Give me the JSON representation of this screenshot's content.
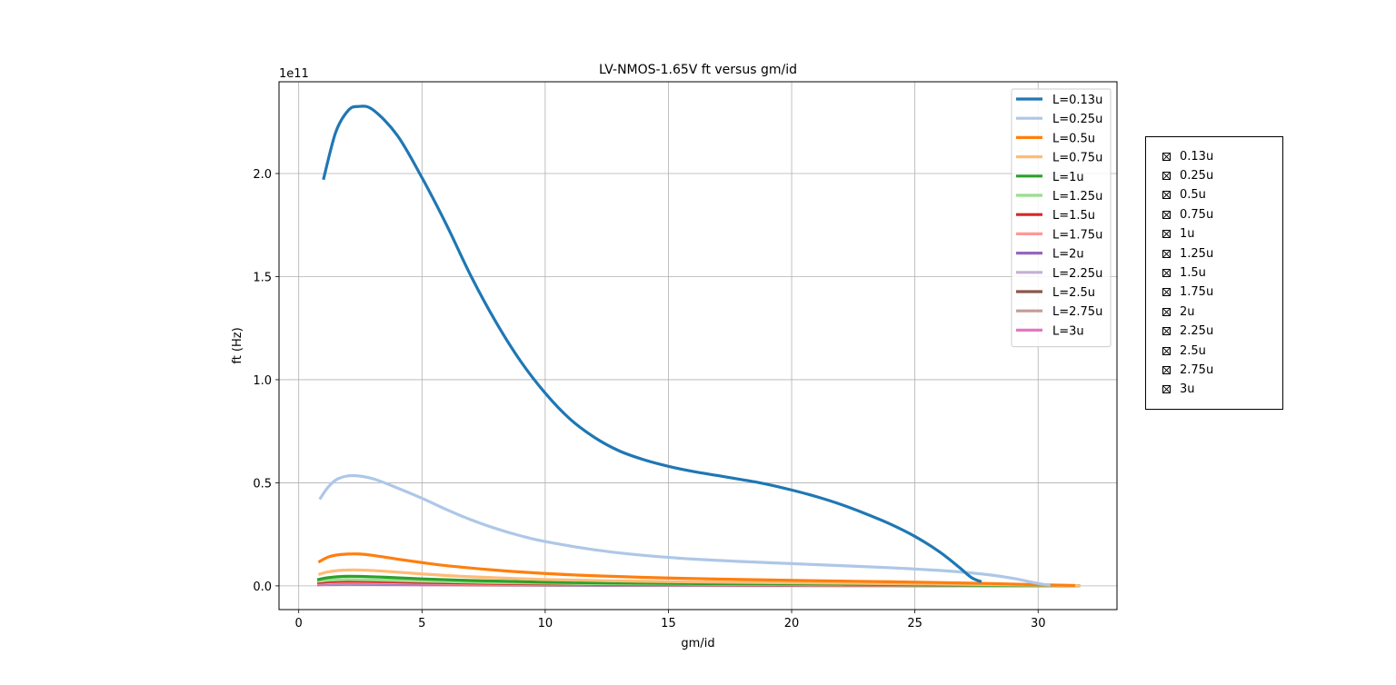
{
  "chart_data": {
    "type": "line",
    "title": "LV-NMOS-1.65V ft versus gm/id",
    "xlabel": "gm/id",
    "ylabel": "ft (Hz)",
    "y_offset_label": "1e11",
    "y_scale_factor": 100000000000.0,
    "xlim": [
      -0.8,
      33.2
    ],
    "ylim": [
      -0.115,
      2.445
    ],
    "x_ticks": [
      0,
      5,
      10,
      15,
      20,
      25,
      30
    ],
    "y_ticks": [
      0.0,
      0.5,
      1.0,
      1.5,
      2.0
    ],
    "x_tick_labels": [
      "0",
      "5",
      "10",
      "15",
      "20",
      "25",
      "30"
    ],
    "y_tick_labels": [
      "0.0",
      "0.5",
      "1.0",
      "1.5",
      "2.0"
    ],
    "grid": true,
    "legend_position": "top-right",
    "series": [
      {
        "name": "L=0.13u",
        "color": "#1f77b4",
        "x": [
          1.0,
          1.5,
          2.0,
          2.4,
          3.0,
          4.0,
          5.0,
          6.0,
          7.0,
          8.0,
          9.0,
          10.0,
          11.0,
          12.0,
          13.0,
          14.0,
          15.0,
          16.0,
          17.0,
          18.0,
          19.0,
          20.0,
          21.0,
          22.0,
          23.0,
          24.0,
          25.0,
          26.0,
          26.8,
          27.3,
          27.7
        ],
        "y": [
          1.97,
          2.2,
          2.305,
          2.325,
          2.31,
          2.185,
          1.98,
          1.75,
          1.5,
          1.28,
          1.09,
          0.935,
          0.81,
          0.72,
          0.655,
          0.612,
          0.58,
          0.555,
          0.535,
          0.515,
          0.493,
          0.465,
          0.433,
          0.395,
          0.35,
          0.3,
          0.24,
          0.165,
          0.09,
          0.04,
          0.02
        ]
      },
      {
        "name": "L=0.25u",
        "color": "#aec7e8",
        "x": [
          0.85,
          1.2,
          1.6,
          2.2,
          3.0,
          4.0,
          5.0,
          6.0,
          7.0,
          8.0,
          9.0,
          10.0,
          12.0,
          14.0,
          16.0,
          18.0,
          20.0,
          22.0,
          24.0,
          26.0,
          27.0,
          28.0,
          29.0,
          30.0,
          30.5
        ],
        "y": [
          0.42,
          0.48,
          0.52,
          0.535,
          0.52,
          0.475,
          0.425,
          0.37,
          0.32,
          0.278,
          0.243,
          0.215,
          0.175,
          0.148,
          0.13,
          0.118,
          0.108,
          0.098,
          0.088,
          0.075,
          0.066,
          0.054,
          0.036,
          0.012,
          0.003
        ]
      },
      {
        "name": "L=0.5u",
        "color": "#ff7f0e",
        "x": [
          0.8,
          1.2,
          1.7,
          2.4,
          3.0,
          4.0,
          5.0,
          6.0,
          8.0,
          10.0,
          12.0,
          15.0,
          18.0,
          21.0,
          24.0,
          27.0,
          30.0,
          31.5
        ],
        "y": [
          0.115,
          0.14,
          0.152,
          0.155,
          0.148,
          0.13,
          0.113,
          0.098,
          0.076,
          0.06,
          0.049,
          0.038,
          0.031,
          0.025,
          0.02,
          0.014,
          0.006,
          0.002
        ]
      },
      {
        "name": "L=0.75u",
        "color": "#ffbb78",
        "x": [
          0.8,
          1.2,
          1.8,
          2.5,
          3.5,
          5.0,
          7.0,
          10.0,
          14.0,
          18.0,
          22.0,
          26.0,
          30.0,
          31.7
        ],
        "y": [
          0.055,
          0.068,
          0.076,
          0.077,
          0.071,
          0.058,
          0.044,
          0.031,
          0.022,
          0.017,
          0.013,
          0.009,
          0.004,
          0.001
        ]
      },
      {
        "name": "L=1u",
        "color": "#2ca02c",
        "x": [
          0.75,
          1.2,
          1.8,
          2.5,
          3.5,
          5.0,
          7.0,
          10.0,
          14.0,
          18.0,
          22.0,
          26.0,
          30.0,
          31.7
        ],
        "y": [
          0.03,
          0.04,
          0.046,
          0.046,
          0.042,
          0.034,
          0.026,
          0.018,
          0.013,
          0.01,
          0.008,
          0.005,
          0.002,
          0.0005
        ]
      },
      {
        "name": "L=1.25u",
        "color": "#98df8a",
        "x": [
          0.75,
          1.3,
          2.0,
          3.0,
          5.0,
          8.0,
          12.0,
          16.0,
          20.0,
          25.0,
          30.0,
          31.7
        ],
        "y": [
          0.022,
          0.028,
          0.031,
          0.029,
          0.023,
          0.016,
          0.011,
          0.008,
          0.006,
          0.004,
          0.0015,
          0.0004
        ]
      },
      {
        "name": "L=1.5u",
        "color": "#d62728",
        "x": [
          0.75,
          1.3,
          2.0,
          3.0,
          5.0,
          8.0,
          12.0,
          16.0,
          20.0,
          25.0,
          30.0,
          31.7
        ],
        "y": [
          0.016,
          0.021,
          0.023,
          0.022,
          0.017,
          0.012,
          0.008,
          0.006,
          0.0045,
          0.003,
          0.001,
          0.0003
        ]
      },
      {
        "name": "L=1.75u",
        "color": "#ff9896",
        "x": [
          0.75,
          1.3,
          2.0,
          3.0,
          5.0,
          8.0,
          12.0,
          16.0,
          20.0,
          25.0,
          30.0,
          31.7
        ],
        "y": [
          0.012,
          0.016,
          0.018,
          0.017,
          0.013,
          0.009,
          0.0065,
          0.0048,
          0.0036,
          0.0024,
          0.0008,
          0.0002
        ]
      },
      {
        "name": "L=2u",
        "color": "#9467bd",
        "x": [
          0.75,
          1.3,
          2.0,
          3.0,
          5.0,
          8.0,
          12.0,
          16.0,
          20.0,
          25.0,
          30.0,
          31.7
        ],
        "y": [
          0.01,
          0.013,
          0.0145,
          0.0135,
          0.0105,
          0.0073,
          0.0052,
          0.0039,
          0.0029,
          0.0019,
          0.0006,
          0.0002
        ]
      },
      {
        "name": "L=2.25u",
        "color": "#c5b0d5",
        "x": [
          0.75,
          1.3,
          2.0,
          3.0,
          5.0,
          8.0,
          12.0,
          16.0,
          20.0,
          25.0,
          30.0,
          31.7
        ],
        "y": [
          0.008,
          0.0105,
          0.0118,
          0.011,
          0.0086,
          0.006,
          0.0043,
          0.0032,
          0.0024,
          0.0016,
          0.0005,
          0.0001
        ]
      },
      {
        "name": "L=2.5u",
        "color": "#8c564b",
        "x": [
          0.75,
          1.3,
          2.0,
          3.0,
          5.0,
          8.0,
          12.0,
          16.0,
          20.0,
          25.0,
          30.0,
          31.7
        ],
        "y": [
          0.0065,
          0.0087,
          0.0098,
          0.0092,
          0.0072,
          0.005,
          0.0036,
          0.0027,
          0.002,
          0.0013,
          0.0004,
          0.0001
        ]
      },
      {
        "name": "L=2.75u",
        "color": "#c49c94",
        "x": [
          0.75,
          1.3,
          2.0,
          3.0,
          5.0,
          8.0,
          12.0,
          16.0,
          20.0,
          25.0,
          30.0,
          31.7
        ],
        "y": [
          0.0055,
          0.0073,
          0.0082,
          0.0077,
          0.006,
          0.0042,
          0.003,
          0.0023,
          0.0017,
          0.0011,
          0.0004,
          0.0001
        ]
      },
      {
        "name": "L=3u",
        "color": "#e377c2",
        "x": [
          0.75,
          1.3,
          2.0,
          3.0,
          5.0,
          8.0,
          12.0,
          16.0,
          20.0,
          25.0,
          30.0,
          31.7
        ],
        "y": [
          0.0047,
          0.0062,
          0.007,
          0.0066,
          0.0052,
          0.0036,
          0.0026,
          0.002,
          0.0015,
          0.001,
          0.0003,
          0.0001
        ]
      }
    ]
  },
  "check_panel": {
    "items": [
      {
        "label": "0.13u",
        "checked": true
      },
      {
        "label": "0.25u",
        "checked": true
      },
      {
        "label": "0.5u",
        "checked": true
      },
      {
        "label": "0.75u",
        "checked": true
      },
      {
        "label": "1u",
        "checked": true
      },
      {
        "label": "1.25u",
        "checked": true
      },
      {
        "label": "1.5u",
        "checked": true
      },
      {
        "label": "1.75u",
        "checked": true
      },
      {
        "label": "2u",
        "checked": true
      },
      {
        "label": "2.25u",
        "checked": true
      },
      {
        "label": "2.5u",
        "checked": true
      },
      {
        "label": "2.75u",
        "checked": true
      },
      {
        "label": "3u",
        "checked": true
      }
    ]
  }
}
